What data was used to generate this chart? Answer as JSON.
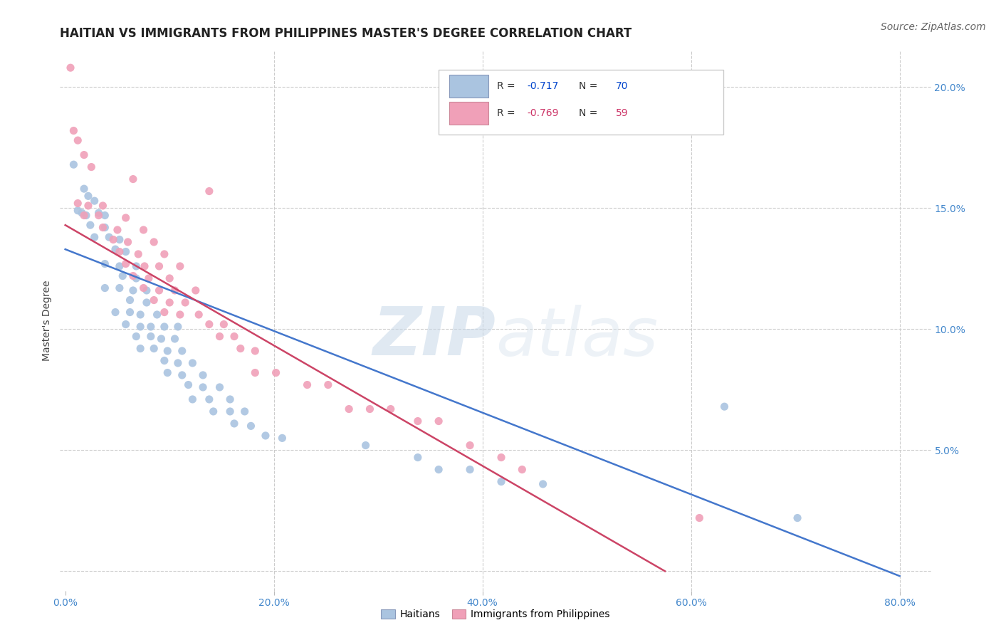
{
  "title": "HAITIAN VS IMMIGRANTS FROM PHILIPPINES MASTER'S DEGREE CORRELATION CHART",
  "source": "Source: ZipAtlas.com",
  "ylabel": "Master's Degree",
  "ytick_values": [
    0.0,
    0.05,
    0.1,
    0.15,
    0.2
  ],
  "xtick_values": [
    0.0,
    0.2,
    0.4,
    0.6,
    0.8
  ],
  "xlim": [
    -0.005,
    0.83
  ],
  "ylim": [
    -0.008,
    0.215
  ],
  "blue_line": {
    "x0": 0.0,
    "y0": 0.133,
    "x1": 0.8,
    "y1": -0.002,
    "color": "#4477cc",
    "lw": 1.8
  },
  "pink_line": {
    "x0": 0.0,
    "y0": 0.143,
    "x1": 0.575,
    "y1": 0.0,
    "color": "#cc4466",
    "lw": 1.8
  },
  "scatter_blue": [
    [
      0.008,
      0.168
    ],
    [
      0.018,
      0.158
    ],
    [
      0.022,
      0.155
    ],
    [
      0.028,
      0.153
    ],
    [
      0.012,
      0.149
    ],
    [
      0.016,
      0.148
    ],
    [
      0.02,
      0.147
    ],
    [
      0.032,
      0.148
    ],
    [
      0.038,
      0.147
    ],
    [
      0.024,
      0.143
    ],
    [
      0.038,
      0.142
    ],
    [
      0.028,
      0.138
    ],
    [
      0.042,
      0.138
    ],
    [
      0.052,
      0.137
    ],
    [
      0.048,
      0.133
    ],
    [
      0.058,
      0.132
    ],
    [
      0.038,
      0.127
    ],
    [
      0.052,
      0.126
    ],
    [
      0.068,
      0.126
    ],
    [
      0.055,
      0.122
    ],
    [
      0.068,
      0.121
    ],
    [
      0.038,
      0.117
    ],
    [
      0.052,
      0.117
    ],
    [
      0.065,
      0.116
    ],
    [
      0.078,
      0.116
    ],
    [
      0.062,
      0.112
    ],
    [
      0.078,
      0.111
    ],
    [
      0.048,
      0.107
    ],
    [
      0.062,
      0.107
    ],
    [
      0.072,
      0.106
    ],
    [
      0.088,
      0.106
    ],
    [
      0.058,
      0.102
    ],
    [
      0.072,
      0.101
    ],
    [
      0.082,
      0.101
    ],
    [
      0.095,
      0.101
    ],
    [
      0.108,
      0.101
    ],
    [
      0.068,
      0.097
    ],
    [
      0.082,
      0.097
    ],
    [
      0.092,
      0.096
    ],
    [
      0.105,
      0.096
    ],
    [
      0.072,
      0.092
    ],
    [
      0.085,
      0.092
    ],
    [
      0.098,
      0.091
    ],
    [
      0.112,
      0.091
    ],
    [
      0.095,
      0.087
    ],
    [
      0.108,
      0.086
    ],
    [
      0.122,
      0.086
    ],
    [
      0.098,
      0.082
    ],
    [
      0.112,
      0.081
    ],
    [
      0.132,
      0.081
    ],
    [
      0.118,
      0.077
    ],
    [
      0.132,
      0.076
    ],
    [
      0.148,
      0.076
    ],
    [
      0.122,
      0.071
    ],
    [
      0.138,
      0.071
    ],
    [
      0.158,
      0.071
    ],
    [
      0.142,
      0.066
    ],
    [
      0.158,
      0.066
    ],
    [
      0.172,
      0.066
    ],
    [
      0.162,
      0.061
    ],
    [
      0.178,
      0.06
    ],
    [
      0.192,
      0.056
    ],
    [
      0.208,
      0.055
    ],
    [
      0.288,
      0.052
    ],
    [
      0.338,
      0.047
    ],
    [
      0.358,
      0.042
    ],
    [
      0.388,
      0.042
    ],
    [
      0.418,
      0.037
    ],
    [
      0.458,
      0.036
    ],
    [
      0.632,
      0.068
    ],
    [
      0.702,
      0.022
    ]
  ],
  "scatter_pink": [
    [
      0.005,
      0.208
    ],
    [
      0.008,
      0.182
    ],
    [
      0.012,
      0.178
    ],
    [
      0.018,
      0.172
    ],
    [
      0.025,
      0.167
    ],
    [
      0.065,
      0.162
    ],
    [
      0.138,
      0.157
    ],
    [
      0.012,
      0.152
    ],
    [
      0.022,
      0.151
    ],
    [
      0.036,
      0.151
    ],
    [
      0.018,
      0.147
    ],
    [
      0.032,
      0.147
    ],
    [
      0.058,
      0.146
    ],
    [
      0.036,
      0.142
    ],
    [
      0.05,
      0.141
    ],
    [
      0.075,
      0.141
    ],
    [
      0.046,
      0.137
    ],
    [
      0.06,
      0.136
    ],
    [
      0.085,
      0.136
    ],
    [
      0.052,
      0.132
    ],
    [
      0.07,
      0.131
    ],
    [
      0.095,
      0.131
    ],
    [
      0.058,
      0.127
    ],
    [
      0.076,
      0.126
    ],
    [
      0.09,
      0.126
    ],
    [
      0.11,
      0.126
    ],
    [
      0.065,
      0.122
    ],
    [
      0.08,
      0.121
    ],
    [
      0.1,
      0.121
    ],
    [
      0.075,
      0.117
    ],
    [
      0.09,
      0.116
    ],
    [
      0.105,
      0.116
    ],
    [
      0.125,
      0.116
    ],
    [
      0.085,
      0.112
    ],
    [
      0.1,
      0.111
    ],
    [
      0.115,
      0.111
    ],
    [
      0.095,
      0.107
    ],
    [
      0.11,
      0.106
    ],
    [
      0.128,
      0.106
    ],
    [
      0.138,
      0.102
    ],
    [
      0.152,
      0.102
    ],
    [
      0.148,
      0.097
    ],
    [
      0.162,
      0.097
    ],
    [
      0.168,
      0.092
    ],
    [
      0.182,
      0.091
    ],
    [
      0.182,
      0.082
    ],
    [
      0.202,
      0.082
    ],
    [
      0.232,
      0.077
    ],
    [
      0.252,
      0.077
    ],
    [
      0.272,
      0.067
    ],
    [
      0.292,
      0.067
    ],
    [
      0.312,
      0.067
    ],
    [
      0.338,
      0.062
    ],
    [
      0.358,
      0.062
    ],
    [
      0.388,
      0.052
    ],
    [
      0.418,
      0.047
    ],
    [
      0.438,
      0.042
    ],
    [
      0.608,
      0.022
    ]
  ],
  "watermark_zip": "ZIP",
  "watermark_atlas": "atlas",
  "title_fontsize": 12,
  "axis_label_fontsize": 10,
  "tick_fontsize": 10,
  "source_fontsize": 10,
  "legend_fontsize": 10,
  "scatter_size": 65,
  "blue_scatter_color": "#aac4e0",
  "pink_scatter_color": "#f0a0b8",
  "blue_scatter_edge": "none",
  "pink_scatter_edge": "none",
  "grid_color": "#cccccc",
  "background_color": "#ffffff",
  "tick_color": "#4488cc",
  "right_tick_color": "#4488cc"
}
